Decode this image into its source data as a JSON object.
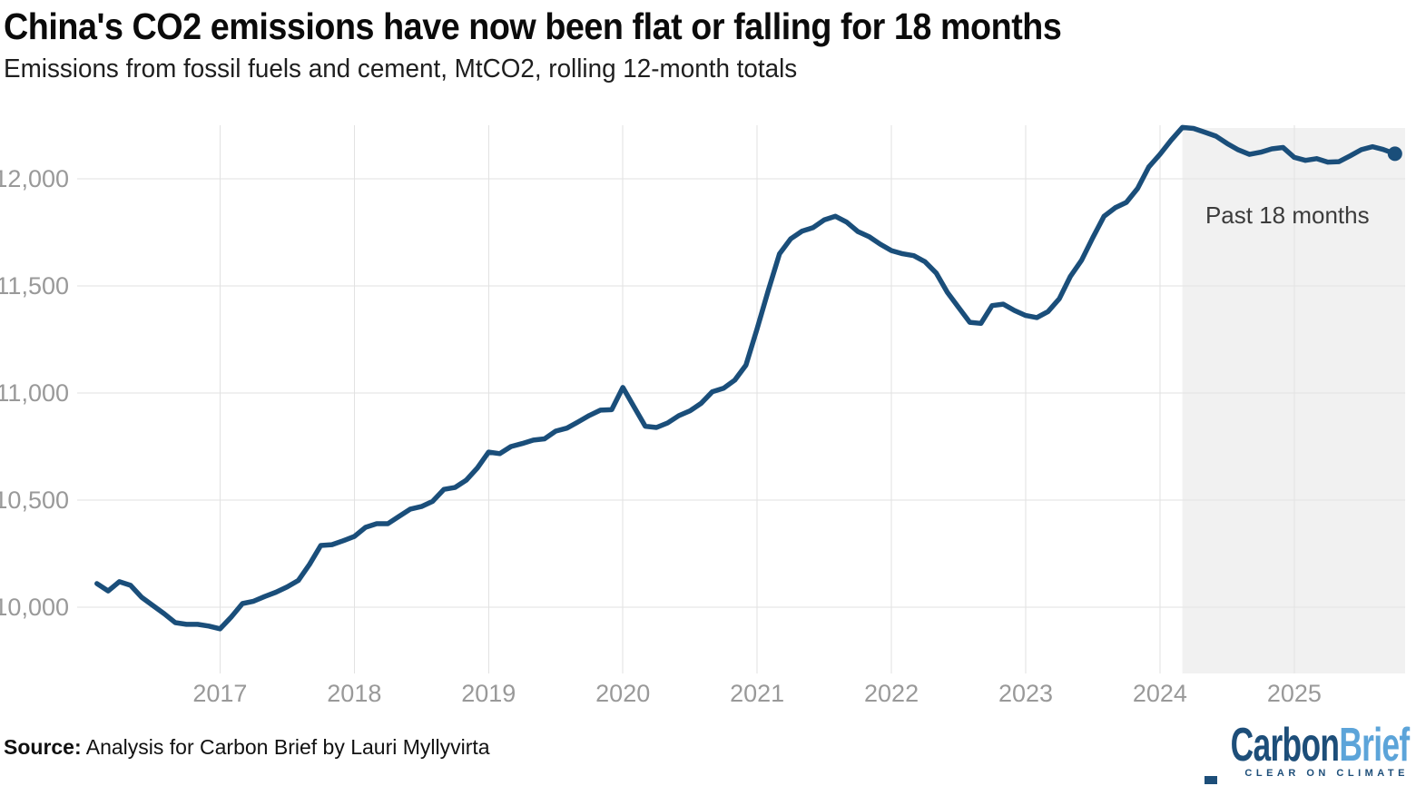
{
  "header": {
    "title": "China's CO2 emissions have now been flat or falling for 18 months",
    "subtitle": "Emissions from fossil fuels and cement, MtCO2, rolling 12-month totals"
  },
  "source": {
    "prefix": "Source:",
    "text": " Analysis for Carbon Brief by Lauri Myllyvirta"
  },
  "logo": {
    "part1": "Carbon",
    "part2": "Brief",
    "tagline": "CLEAR ON CLIMATE",
    "navy": "#1d4e79",
    "light_blue": "#5ca4d9"
  },
  "chart_data": {
    "type": "line",
    "title": "China's CO2 emissions have now been flat or falling for 18 months",
    "subtitle": "Emissions from fossil fuels and cement, MtCO2, rolling 12-month totals",
    "ylabel": "MtCO2 (rolling 12-month totals)",
    "xlabel": "",
    "grid": true,
    "x_first_month": "2016-02",
    "x_last_month": "2025-10",
    "x_year_ticks": [
      "2017",
      "2018",
      "2019",
      "2020",
      "2021",
      "2022",
      "2023",
      "2024",
      "2025"
    ],
    "y_ticks": [
      12000,
      11500,
      11000,
      10500,
      10000
    ],
    "ylim": [
      9700,
      12320
    ],
    "highlight_region": {
      "label": "Past 18 months",
      "start_month": "2024-03",
      "start_index": 97,
      "end": "plot-right-edge"
    },
    "colors": {
      "line": "#1a4e7a",
      "grid": "#e2e2e2",
      "axis_text": "#999999",
      "highlight_fill": "#f1f1f1",
      "annotation_text": "#3c3c3c"
    },
    "series": [
      {
        "name": "China CO2 emissions, rolling 12-month total (MtCO2)",
        "monthly_from": "2016-02",
        "values": [
          10110,
          10076,
          10119,
          10102,
          10046,
          10008,
          9970,
          9928,
          9920,
          9920,
          9912,
          9899,
          9954,
          10017,
          10028,
          10050,
          10070,
          10095,
          10125,
          10200,
          10288,
          10292,
          10310,
          10330,
          10373,
          10390,
          10390,
          10424,
          10458,
          10470,
          10494,
          10550,
          10559,
          10593,
          10650,
          10724,
          10717,
          10750,
          10764,
          10780,
          10786,
          10822,
          10836,
          10865,
          10895,
          10920,
          10922,
          11026,
          10935,
          10845,
          10839,
          10860,
          10894,
          10917,
          10952,
          11006,
          11022,
          11060,
          11130,
          11300,
          11480,
          11650,
          11720,
          11755,
          11772,
          11808,
          11825,
          11798,
          11754,
          11730,
          11695,
          11665,
          11650,
          11641,
          11613,
          11560,
          11470,
          11400,
          11330,
          11325,
          11408,
          11415,
          11385,
          11362,
          11352,
          11380,
          11440,
          11545,
          11620,
          11726,
          11825,
          11865,
          11890,
          11955,
          12055,
          12114,
          12180,
          12240,
          12235,
          12218,
          12199,
          12165,
          12135,
          12114,
          12124,
          12140,
          12146,
          12100,
          12086,
          12094,
          12078,
          12080,
          12107,
          12136,
          12150,
          12136,
          12117
        ]
      }
    ],
    "last_point_value": 12117,
    "last_point_marker": true
  }
}
